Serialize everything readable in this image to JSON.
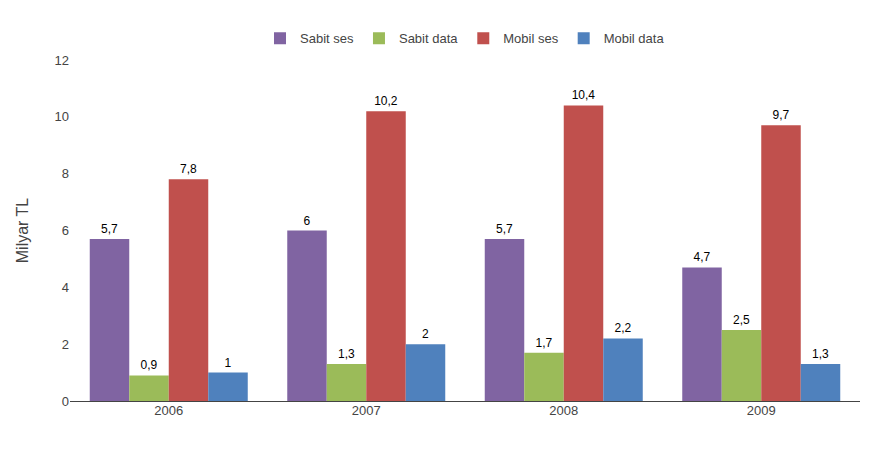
{
  "chart_data": {
    "type": "bar",
    "ylabel": "Milyar TL",
    "categories": [
      "2006",
      "2007",
      "2008",
      "2009"
    ],
    "series": [
      {
        "name": "Sabit ses",
        "color": "#8064A2",
        "values": [
          5.7,
          6.0,
          5.7,
          4.7
        ],
        "value_labels": [
          "5,7",
          "6",
          "5,7",
          "4,7"
        ]
      },
      {
        "name": "Sabit data",
        "color": "#9BBB59",
        "values": [
          0.9,
          1.3,
          1.7,
          2.5
        ],
        "value_labels": [
          "0,9",
          "1,3",
          "1,7",
          "2,5"
        ]
      },
      {
        "name": "Mobil ses",
        "color": "#C0504D",
        "values": [
          7.8,
          10.2,
          10.4,
          9.7
        ],
        "value_labels": [
          "7,8",
          "10,2",
          "10,4",
          "9,7"
        ]
      },
      {
        "name": "Mobil data",
        "color": "#4F81BD",
        "values": [
          1.0,
          2.0,
          2.2,
          1.3
        ],
        "value_labels": [
          "1",
          "2",
          "2,2",
          "1,3"
        ]
      }
    ],
    "ylim": [
      0,
      12
    ],
    "yticks": [
      0,
      2,
      4,
      6,
      8,
      10,
      12
    ],
    "grid": false,
    "data_labels": true,
    "legend": "top"
  }
}
